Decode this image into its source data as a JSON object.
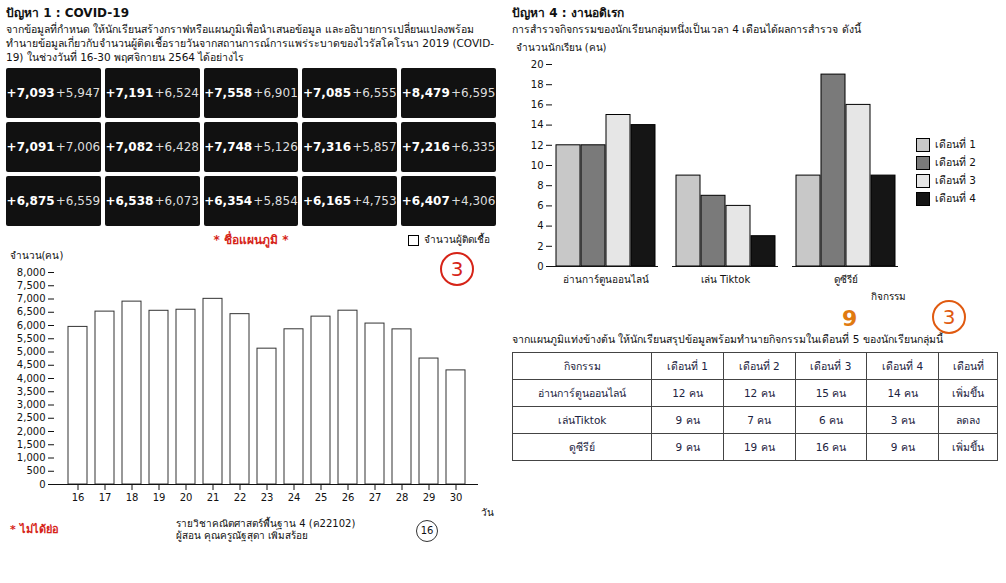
{
  "chart_data": [
    {
      "type": "bar",
      "x_label": "วัน",
      "y_label": "จำนวน(คน)",
      "categories": [
        16,
        17,
        18,
        19,
        20,
        21,
        22,
        23,
        24,
        25,
        26,
        27,
        28,
        29,
        30
      ],
      "series": [
        {
          "name": "จำนวนผู้ติดเชื้อ",
          "color": "#ffffff",
          "values": [
            5947,
            6524,
            6901,
            6555,
            6595,
            7006,
            6428,
            5126,
            5857,
            6335,
            6559,
            6073,
            5854,
            4753,
            4306
          ]
        }
      ],
      "ylim": [
        0,
        8000
      ],
      "yticks": [
        0,
        {
          "value": 500,
          "label": "500"
        },
        {
          "value": 1000,
          "label": "1,000"
        },
        {
          "value": 1500,
          "label": "1,500"
        },
        {
          "value": 2000,
          "label": "2,000"
        },
        {
          "value": 2500,
          "label": "2,500"
        },
        {
          "value": 3000,
          "label": "3,000"
        },
        {
          "value": 3500,
          "label": "3,500"
        },
        {
          "value": 4000,
          "label": "4,000"
        },
        {
          "value": 4500,
          "label": "4,500"
        },
        {
          "value": 5000,
          "label": "5,000"
        },
        {
          "value": 5500,
          "label": "5,500"
        },
        {
          "value": 6000,
          "label": "6,000"
        },
        {
          "value": 6500,
          "label": "6,500"
        },
        {
          "value": 7000,
          "label": "7,000"
        },
        {
          "value": 7500,
          "label": "7,500"
        },
        {
          "value": 8000,
          "label": "8,000"
        }
      ],
      "legend": "top-right",
      "annotations": [
        "* ชื่อแผนภูมิ *",
        "3",
        "* ไม่ได้ย่อ"
      ]
    },
    {
      "type": "bar",
      "x_label": "กิจกรรม",
      "y_label": "จำนวนนักเรียน (คน)",
      "categories": [
        "อ่านการ์ตูนออนไลน์",
        "เล่น Tiktok",
        "ดูซีรีย์"
      ],
      "series": [
        {
          "name": "เดือนที่ 1",
          "color": "#c8c8c8",
          "values": [
            12,
            9,
            9
          ]
        },
        {
          "name": "เดือนที่ 2",
          "color": "#7a7a7a",
          "values": [
            12,
            7,
            19
          ]
        },
        {
          "name": "เดือนที่ 3",
          "color": "#e6e6e6",
          "values": [
            15,
            6,
            16
          ]
        },
        {
          "name": "เดือนที่ 4",
          "color": "#151515",
          "values": [
            14,
            3,
            9
          ]
        }
      ],
      "ylim": [
        0,
        20
      ],
      "yticks": [
        0,
        2,
        4,
        6,
        8,
        10,
        12,
        14,
        16,
        18,
        20
      ],
      "legend": "right"
    }
  ],
  "problem1": {
    "heading": "ปัญหา 1 : COVID-19",
    "prompt": "จากข้อมูลที่กำหนด ให้นักเรียนสร้างกราฟหรือแผนภูมิเพื่อนำเสนอข้อมูล และอธิบายการเปลี่ยนแปลงพร้อมทำนายข้อมูลเกี่ยวกับจำนวนผู้ติดเชื้อรายวันจากสถานการณ์การแพร่ระบาดของไวรัสโคโรนา 2019 (COVID-19) ในช่วงวันที่ 16-30 พฤศจิกายน 2564 ได้อย่างไร",
    "tiles": [
      {
        "total": "+7,093",
        "new": "+5,947"
      },
      {
        "total": "+7,191",
        "new": "+6,524"
      },
      {
        "total": "+7,558",
        "new": "+6,901"
      },
      {
        "total": "+7,085",
        "new": "+6,555"
      },
      {
        "total": "+8,479",
        "new": "+6,595"
      },
      {
        "total": "+7,091",
        "new": "+7,006"
      },
      {
        "total": "+7,082",
        "new": "+6,428"
      },
      {
        "total": "+7,748",
        "new": "+5,126"
      },
      {
        "total": "+7,316",
        "new": "+5,857"
      },
      {
        "total": "+7,216",
        "new": "+6,335"
      },
      {
        "total": "+6,875",
        "new": "+6,559"
      },
      {
        "total": "+6,538",
        "new": "+6,073"
      },
      {
        "total": "+6,354",
        "new": "+5,854"
      },
      {
        "total": "+6,165",
        "new": "+4,753"
      },
      {
        "total": "+6,407",
        "new": "+4,306"
      }
    ],
    "course": "รายวิชาคณิตศาสตร์พื้นฐาน 4 (ค22102)",
    "teacher": "ผู้สอน คุณครูณัฐสุดา เพิ่มสร้อย",
    "page": "16"
  },
  "problem4": {
    "heading": "ปัญหา 4 : งานอดิเรก",
    "prompt": "การสำรวจกิจกรรมของนักเรียนกลุ่มหนึ่งเป็นเวลา 4 เดือนได้ผลการสำรวจ ดังนี้",
    "question": "จากแผนภูมิแท่งข้างต้น ให้นักเรียนสรุปข้อมูลพร้อมทำนายกิจกรรมในเดือนที่ 5 ของนักเรียนกลุ่มนี้",
    "annotations": [
      "9",
      "3"
    ],
    "table": {
      "header": [
        "กิจกรรม",
        "เดือนที่ 1",
        "เดือนที่ 2",
        "เดือนที่ 3",
        "เดือนที่ 4",
        "เดือนที่"
      ],
      "rows": [
        [
          "อ่านการ์ตูนออนไลน์",
          "12 คน",
          "12 คน",
          "15 คน",
          "14 คน",
          "เพิ่มขึ้น"
        ],
        [
          "เล่นTiktok",
          "9 คน",
          "7 คน",
          "6 คน",
          "3 คน",
          "ลดลง"
        ],
        [
          "ดูซีรีย์",
          "9 คน",
          "19 คน",
          "16 คน",
          "9 คน",
          "เพิ่มขึ้น"
        ]
      ]
    }
  }
}
